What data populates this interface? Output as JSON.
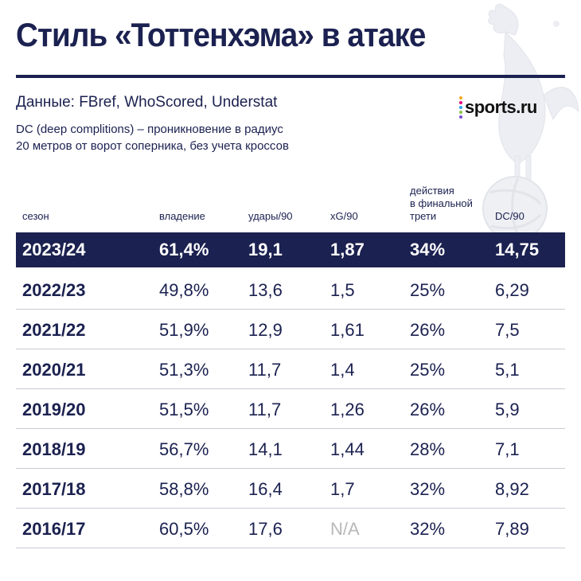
{
  "title": "Стиль «Тоттенхэма» в атаке",
  "source": "Данные: FBref, WhoScored, Understat",
  "note": [
    "DC (deep complitions) – проникновение в радиус",
    "20 метров от ворот соперника, без учета кроссов"
  ],
  "logo": {
    "text": "sports.ru",
    "dot_colors": [
      "#f5a623",
      "#e6007e",
      "#2ea3f2",
      "#8bc34a",
      "#7b4bd8"
    ]
  },
  "colors": {
    "navy": "#1b2150",
    "divider": "#c9cbd3",
    "na": "#b8b8b8"
  },
  "table": {
    "headers": {
      "season": "сезон",
      "possession": "владение",
      "shots": "удары/90",
      "xg": "xG/90",
      "final_third": [
        "действия",
        "в финальной",
        "трети"
      ],
      "dc": "DC/90"
    },
    "rows": [
      {
        "season": "2023/24",
        "possession": "61,4%",
        "shots": "19,1",
        "xg": "1,87",
        "final_third": "34%",
        "dc": "14,75"
      },
      {
        "season": "2022/23",
        "possession": "49,8%",
        "shots": "13,6",
        "xg": "1,5",
        "final_third": "25%",
        "dc": "6,29"
      },
      {
        "season": "2021/22",
        "possession": "51,9%",
        "shots": "12,9",
        "xg": "1,61",
        "final_third": "26%",
        "dc": "7,5"
      },
      {
        "season": "2020/21",
        "possession": "51,3%",
        "shots": "11,7",
        "xg": "1,4",
        "final_third": "25%",
        "dc": "5,1"
      },
      {
        "season": "2019/20",
        "possession": "51,5%",
        "shots": "11,7",
        "xg": "1,26",
        "final_third": "26%",
        "dc": "5,9"
      },
      {
        "season": "2018/19",
        "possession": "56,7%",
        "shots": "14,1",
        "xg": "1,44",
        "final_third": "28%",
        "dc": "7,1"
      },
      {
        "season": "2017/18",
        "possession": "58,8%",
        "shots": "16,4",
        "xg": "1,7",
        "final_third": "32%",
        "dc": "8,92"
      },
      {
        "season": "2016/17",
        "possession": "60,5%",
        "shots": "17,6",
        "xg": "N/A",
        "final_third": "32%",
        "dc": "7,89"
      }
    ]
  }
}
